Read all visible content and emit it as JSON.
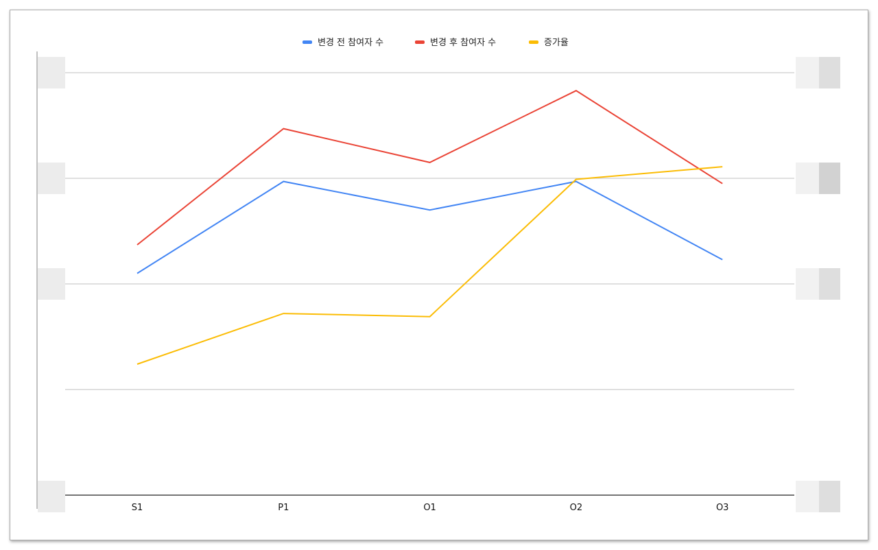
{
  "chart_data": {
    "type": "line",
    "title": "",
    "xlabel": "",
    "ylabel": "",
    "categories": [
      "S1",
      "P1",
      "O1",
      "O2",
      "O3"
    ],
    "series": [
      {
        "name": "변경 전 참여자 수",
        "color": "#4285f4",
        "values": [
          2.1,
          2.97,
          2.7,
          2.97,
          2.23
        ]
      },
      {
        "name": "변경 후 참여자 수",
        "color": "#ea4335",
        "values": [
          2.37,
          3.47,
          3.15,
          3.83,
          2.95
        ]
      },
      {
        "name": "증가율",
        "color": "#fbbc04",
        "values": [
          1.24,
          1.72,
          1.69,
          2.99,
          3.11
        ]
      }
    ],
    "ylim": [
      0,
      4
    ],
    "grid": true,
    "legend_position": "top",
    "y_tick_labels": "obscured"
  }
}
